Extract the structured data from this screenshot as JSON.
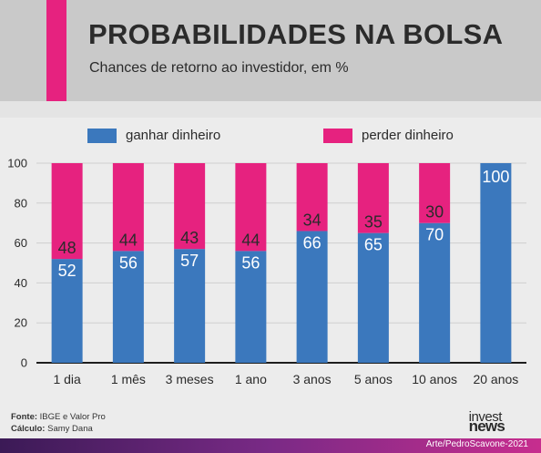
{
  "header": {
    "title": "PROBABILIDADES NA BOLSA",
    "subtitle": "Chances de retorno ao investidor, em %"
  },
  "chart_data": {
    "type": "bar",
    "stacked": true,
    "categories": [
      "1 dia",
      "1 mês",
      "3 meses",
      "1 ano",
      "3 anos",
      "5 anos",
      "10 anos",
      "20 anos"
    ],
    "series": [
      {
        "name": "ganhar dinheiro",
        "values": [
          52,
          56,
          57,
          56,
          66,
          65,
          70,
          100
        ],
        "color": "#3b78bd"
      },
      {
        "name": "perder dinheiro",
        "values": [
          48,
          44,
          43,
          44,
          34,
          35,
          30,
          0
        ],
        "color": "#e6227f"
      }
    ],
    "ylim": [
      0,
      100
    ],
    "yticks": [
      0,
      20,
      40,
      60,
      80,
      100
    ],
    "grid": true,
    "legend": "top"
  },
  "footer": {
    "source_label": "Fonte:",
    "source_value": "IBGE e Valor Pro",
    "calc_label": "Cálculo:",
    "calc_value": "Samy Dana",
    "logo_line1": "invest",
    "logo_line2": "news",
    "credit": "Arte/PedroScavone-2021"
  }
}
